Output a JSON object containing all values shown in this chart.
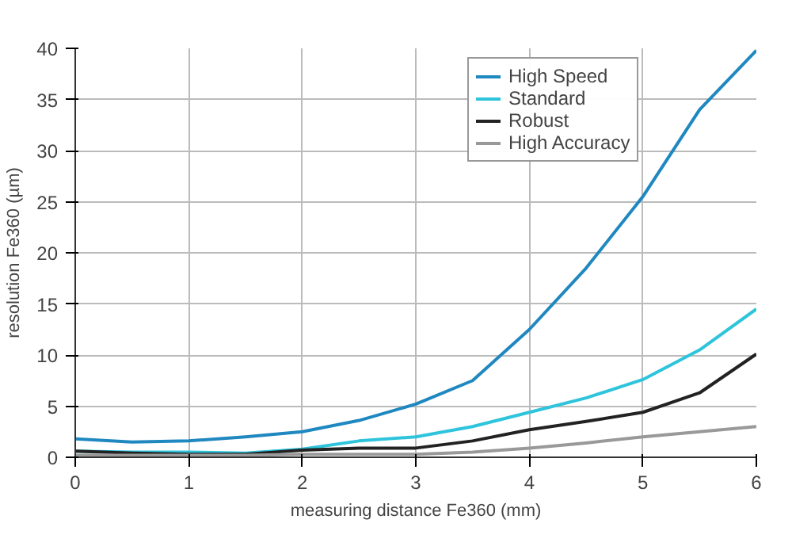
{
  "chart_data": {
    "type": "line",
    "xlabel": "measuring distance Fe360 (mm)",
    "ylabel": "resolution Fe360 (µm)",
    "x": [
      0,
      0.5,
      1,
      1.5,
      2,
      2.5,
      3,
      3.5,
      4,
      4.5,
      5,
      5.5,
      6
    ],
    "series": [
      {
        "name": "High Speed",
        "color": "#1f88c0",
        "values": [
          1.8,
          1.5,
          1.6,
          2.0,
          2.5,
          3.6,
          5.2,
          7.5,
          12.5,
          18.5,
          25.5,
          34,
          39.8
        ]
      },
      {
        "name": "Standard",
        "color": "#2ec4dc",
        "values": [
          0.6,
          0.5,
          0.5,
          0.4,
          0.8,
          1.6,
          2.0,
          3.0,
          4.4,
          5.8,
          7.6,
          10.5,
          14.5
        ]
      },
      {
        "name": "Robust",
        "color": "#222222",
        "values": [
          0.6,
          0.4,
          0.3,
          0.3,
          0.7,
          0.9,
          0.9,
          1.6,
          2.7,
          3.5,
          4.4,
          6.3,
          10.1
        ]
      },
      {
        "name": "High Accuracy",
        "color": "#999999",
        "values": [
          0.2,
          0.2,
          0.2,
          0.2,
          0.3,
          0.3,
          0.3,
          0.5,
          0.9,
          1.4,
          2.0,
          2.5,
          3.0
        ]
      }
    ],
    "xlim": [
      0,
      6
    ],
    "ylim": [
      0,
      40
    ],
    "xticks": [
      0,
      1,
      2,
      3,
      4,
      5,
      6
    ],
    "yticks": [
      0,
      5,
      10,
      15,
      20,
      25,
      30,
      35,
      40
    ],
    "grid": true,
    "legend": "top right",
    "marker": "none",
    "line_style": "solid"
  }
}
